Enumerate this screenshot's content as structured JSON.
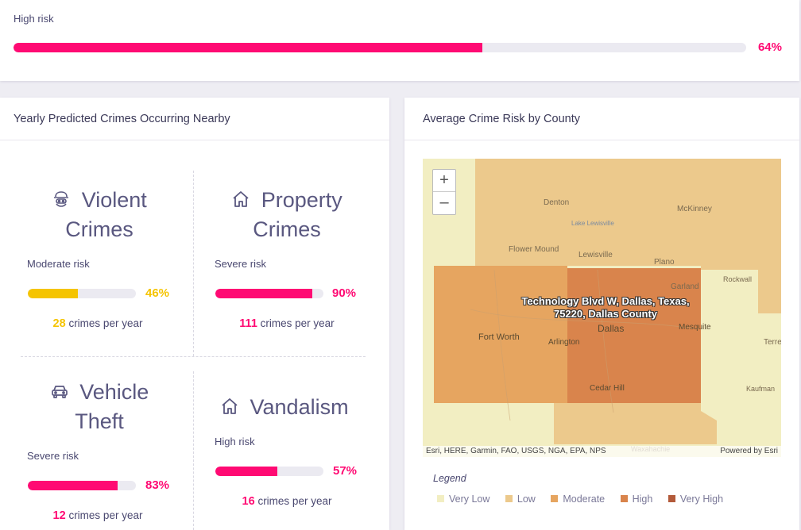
{
  "overall": {
    "risk_label": "High risk",
    "percent": 64,
    "percent_text": "64%",
    "color": "#ff0a73"
  },
  "crimes_card": {
    "title": "Yearly Predicted Crimes Occurring Nearby",
    "count_suffix": "crimes per year",
    "tiles": [
      {
        "title_line1": "Violent",
        "title_line2": "Crimes",
        "icon": "robber-icon",
        "risk_label": "Moderate risk",
        "percent": 46,
        "percent_text": "46%",
        "count": "28",
        "color": "#f5c400"
      },
      {
        "title_line1": "Property",
        "title_line2": "Crimes",
        "icon": "house-icon",
        "risk_label": "Severe risk",
        "percent": 90,
        "percent_text": "90%",
        "count": "111",
        "color": "#ff0a73"
      },
      {
        "title_line1": "Vehicle",
        "title_line2": "Theft",
        "icon": "car-icon",
        "risk_label": "Severe risk",
        "percent": 83,
        "percent_text": "83%",
        "count": "12",
        "color": "#ff0a73"
      },
      {
        "title_line1": "Vandalism",
        "title_line2": "",
        "icon": "house-icon",
        "risk_label": "High risk",
        "percent": 57,
        "percent_text": "57%",
        "count": "16",
        "color": "#ff0a73"
      }
    ]
  },
  "map_card": {
    "title": "Average Crime Risk by County",
    "zoom_in": "+",
    "zoom_out": "–",
    "popup_line1": "Technology Blvd W, Dallas, Texas,",
    "popup_line2": "75220, Dallas County",
    "attribution": "Esri, HERE, Garmin, FAO, USGS, NGA, EPA, NPS",
    "powered_by": "Powered by Esri",
    "places": {
      "denton": "Denton",
      "mckinney": "McKinney",
      "lewisville": "Lewisville",
      "lake_lewisville": "Lake Lewisville",
      "flower_mound": "Flower Mound",
      "plano": "Plano",
      "garland": "Garland",
      "rockwall": "Rockwall",
      "fort_worth": "Fort Worth",
      "arlington": "Arlington",
      "dallas": "Dallas",
      "mesquite": "Mesquite",
      "cedar_hill": "Cedar Hill",
      "terrell": "Terre",
      "kaufman": "Kaufman",
      "ennis": "Waxahachie"
    },
    "legend_title": "Legend",
    "legend": [
      {
        "label": "Very Low",
        "color": "#f2eec2"
      },
      {
        "label": "Low",
        "color": "#ecc98c"
      },
      {
        "label": "Moderate",
        "color": "#e6a560"
      },
      {
        "label": "High",
        "color": "#d9844c"
      },
      {
        "label": "Very High",
        "color": "#b35a3a"
      }
    ]
  }
}
